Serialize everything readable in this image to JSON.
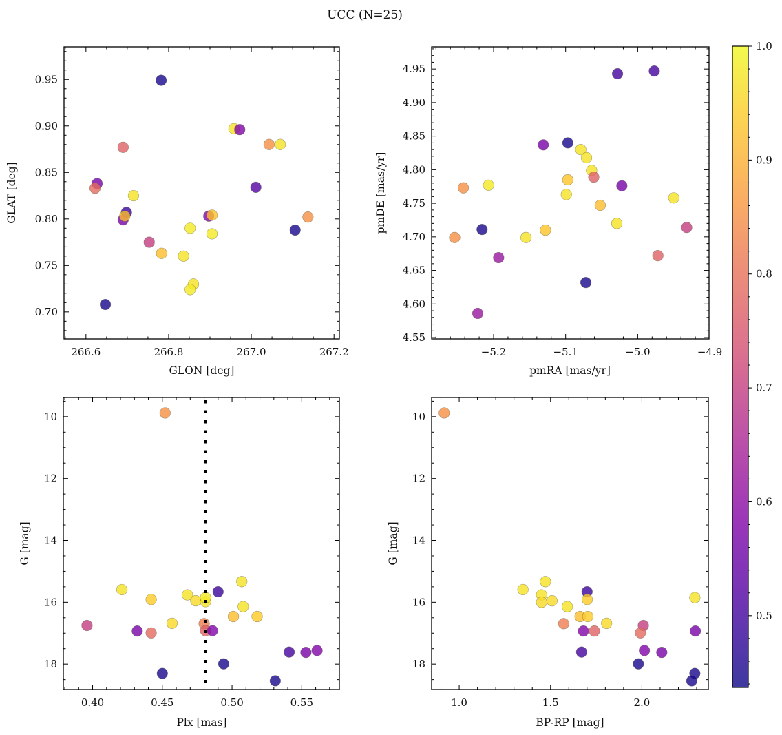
{
  "title": "UCC (N=25)",
  "colormap": "plasma",
  "marker_alpha": 0.8,
  "chart_data": [
    {
      "type": "scatter",
      "xlabel": "GLON [deg]",
      "ylabel": "GLAT [deg]",
      "xlim": [
        266.547,
        267.213
      ],
      "ylim": [
        0.671,
        0.985
      ],
      "xticks": [
        266.6,
        266.8,
        267.0,
        267.2
      ],
      "xtick_labels": [
        "266.6",
        "266.8",
        "267.0",
        "267.2"
      ],
      "xminor": 0.05,
      "yticks": [
        0.7,
        0.75,
        0.8,
        0.85,
        0.9,
        0.95
      ],
      "ytick_labels": [
        "0.70",
        "0.75",
        "0.80",
        "0.85",
        "0.90",
        "0.95"
      ],
      "yminor": 0.01,
      "grid": false,
      "points": [
        [
          266.782,
          0.949,
          0.45
        ],
        [
          266.958,
          0.897,
          0.97
        ],
        [
          266.972,
          0.896,
          0.58
        ],
        [
          267.043,
          0.88,
          0.85
        ],
        [
          267.07,
          0.88,
          0.97
        ],
        [
          266.69,
          0.877,
          0.77
        ],
        [
          266.627,
          0.838,
          0.57
        ],
        [
          266.622,
          0.833,
          0.79
        ],
        [
          267.011,
          0.834,
          0.52
        ],
        [
          266.715,
          0.825,
          0.97
        ],
        [
          266.698,
          0.807,
          0.49
        ],
        [
          266.69,
          0.799,
          0.57
        ],
        [
          266.694,
          0.803,
          0.92
        ],
        [
          266.897,
          0.803,
          0.58
        ],
        [
          266.905,
          0.804,
          0.93
        ],
        [
          267.137,
          0.802,
          0.85
        ],
        [
          267.106,
          0.788,
          0.45
        ],
        [
          266.852,
          0.79,
          0.98
        ],
        [
          266.905,
          0.784,
          0.98
        ],
        [
          266.753,
          0.775,
          0.7
        ],
        [
          266.783,
          0.763,
          0.92
        ],
        [
          266.836,
          0.76,
          0.97
        ],
        [
          266.86,
          0.73,
          0.97
        ],
        [
          266.852,
          0.724,
          0.98
        ],
        [
          266.647,
          0.708,
          0.45
        ]
      ]
    },
    {
      "type": "scatter",
      "xlabel": "pmRA [mas/yr]",
      "ylabel": "pmDE [mas/yr]",
      "xlim": [
        -5.286,
        -4.901
      ],
      "ylim": [
        4.548,
        4.983
      ],
      "xticks": [
        -5.2,
        -5.1,
        -5.0,
        -4.9
      ],
      "xtick_labels": [
        "−5.2",
        "−5.1",
        "−5.0",
        "−4.9"
      ],
      "xminor": 0.02,
      "yticks": [
        4.55,
        4.6,
        4.65,
        4.7,
        4.75,
        4.8,
        4.85,
        4.9,
        4.95
      ],
      "ytick_labels": [
        "4.55",
        "4.60",
        "4.65",
        "4.70",
        "4.75",
        "4.80",
        "4.85",
        "4.90",
        "4.95"
      ],
      "yminor": 0.01,
      "grid": false,
      "points": [
        [
          -5.028,
          4.943,
          0.5
        ],
        [
          -4.977,
          4.947,
          0.5
        ],
        [
          -5.131,
          4.837,
          0.57
        ],
        [
          -5.097,
          4.84,
          0.45
        ],
        [
          -5.079,
          4.83,
          0.97
        ],
        [
          -5.071,
          4.818,
          0.97
        ],
        [
          -5.064,
          4.799,
          0.97
        ],
        [
          -5.061,
          4.789,
          0.77
        ],
        [
          -5.097,
          4.785,
          0.93
        ],
        [
          -5.022,
          4.776,
          0.57
        ],
        [
          -5.242,
          4.773,
          0.85
        ],
        [
          -5.207,
          4.777,
          0.98
        ],
        [
          -5.099,
          4.763,
          0.97
        ],
        [
          -4.95,
          4.758,
          0.97
        ],
        [
          -5.052,
          4.747,
          0.92
        ],
        [
          -5.029,
          4.72,
          0.97
        ],
        [
          -4.932,
          4.714,
          0.7
        ],
        [
          -5.216,
          4.711,
          0.45
        ],
        [
          -5.128,
          4.71,
          0.93
        ],
        [
          -5.254,
          4.699,
          0.85
        ],
        [
          -5.155,
          4.699,
          0.97
        ],
        [
          -4.972,
          4.672,
          0.77
        ],
        [
          -5.193,
          4.669,
          0.62
        ],
        [
          -5.072,
          4.632,
          0.45
        ],
        [
          -5.222,
          4.586,
          0.62
        ]
      ]
    },
    {
      "type": "scatter",
      "xlabel": "Plx [mas]",
      "ylabel": "G [mag]",
      "xlim": [
        0.379,
        0.577
      ],
      "ylim": [
        18.82,
        9.38
      ],
      "y_inverted": true,
      "xticks": [
        0.4,
        0.45,
        0.5,
        0.55
      ],
      "xtick_labels": [
        "0.40",
        "0.45",
        "0.50",
        "0.55"
      ],
      "xminor": 0.01,
      "yticks": [
        10,
        12,
        14,
        16,
        18
      ],
      "ytick_labels": [
        "10",
        "12",
        "14",
        "16",
        "18"
      ],
      "yminor": 0.5,
      "grid": false,
      "vline": {
        "x": 0.481,
        "style": "dotted",
        "color": "#000000"
      },
      "points": [
        [
          0.452,
          9.88,
          0.85
        ],
        [
          0.421,
          15.59,
          0.97
        ],
        [
          0.442,
          15.91,
          0.94
        ],
        [
          0.396,
          16.75,
          0.7
        ],
        [
          0.432,
          16.93,
          0.57
        ],
        [
          0.442,
          16.99,
          0.79
        ],
        [
          0.457,
          16.68,
          0.96
        ],
        [
          0.468,
          15.76,
          0.97
        ],
        [
          0.474,
          15.95,
          0.96
        ],
        [
          0.481,
          15.98,
          0.97
        ],
        [
          0.481,
          15.85,
          0.98
        ],
        [
          0.48,
          16.69,
          0.82
        ],
        [
          0.481,
          16.92,
          0.77
        ],
        [
          0.486,
          16.92,
          0.58
        ],
        [
          0.49,
          15.66,
          0.49
        ],
        [
          0.507,
          15.33,
          0.97
        ],
        [
          0.508,
          16.14,
          0.97
        ],
        [
          0.501,
          16.46,
          0.92
        ],
        [
          0.518,
          16.46,
          0.94
        ],
        [
          0.494,
          17.99,
          0.45
        ],
        [
          0.45,
          18.3,
          0.45
        ],
        [
          0.531,
          18.54,
          0.45
        ],
        [
          0.541,
          17.61,
          0.5
        ],
        [
          0.553,
          17.62,
          0.57
        ],
        [
          0.561,
          17.56,
          0.58
        ]
      ]
    },
    {
      "type": "scatter",
      "xlabel": "BP-RP [mag]",
      "ylabel": "G [mag]",
      "xlim": [
        0.849,
        2.364
      ],
      "ylim": [
        18.82,
        9.38
      ],
      "y_inverted": true,
      "xticks": [
        1.0,
        1.5,
        2.0
      ],
      "xtick_labels": [
        "1.0",
        "1.5",
        "2.0"
      ],
      "xminor": 0.1,
      "yticks": [
        10,
        12,
        14,
        16,
        18
      ],
      "ytick_labels": [
        "10",
        "12",
        "14",
        "16",
        "18"
      ],
      "yminor": 0.5,
      "grid": false,
      "points": [
        [
          0.918,
          9.88,
          0.85
        ],
        [
          1.349,
          15.59,
          0.97
        ],
        [
          1.472,
          15.33,
          0.97
        ],
        [
          1.451,
          15.76,
          0.97
        ],
        [
          1.451,
          16.0,
          0.96
        ],
        [
          1.508,
          15.95,
          0.96
        ],
        [
          1.592,
          16.14,
          0.97
        ],
        [
          1.662,
          16.46,
          0.92
        ],
        [
          1.704,
          16.46,
          0.94
        ],
        [
          1.7,
          15.66,
          0.49
        ],
        [
          1.701,
          15.91,
          0.94
        ],
        [
          1.807,
          16.68,
          0.96
        ],
        [
          1.572,
          16.69,
          0.82
        ],
        [
          1.68,
          16.93,
          0.58
        ],
        [
          1.74,
          16.93,
          0.77
        ],
        [
          1.67,
          17.61,
          0.5
        ],
        [
          2.008,
          16.75,
          0.7
        ],
        [
          1.992,
          16.99,
          0.79
        ],
        [
          2.014,
          17.56,
          0.58
        ],
        [
          2.109,
          17.62,
          0.57
        ],
        [
          1.981,
          17.99,
          0.45
        ],
        [
          2.29,
          15.85,
          0.97
        ],
        [
          2.293,
          16.93,
          0.57
        ],
        [
          2.29,
          18.3,
          0.45
        ],
        [
          2.273,
          18.54,
          0.45
        ]
      ]
    }
  ],
  "colorbar": {
    "range": [
      0.437,
      1.0
    ],
    "ticks": [
      0.5,
      0.6,
      0.7,
      0.8,
      0.9,
      1.0
    ],
    "tick_labels": [
      "0.5",
      "0.6",
      "0.7",
      "0.8",
      "0.9",
      "1.0"
    ],
    "minor": 0.02
  }
}
